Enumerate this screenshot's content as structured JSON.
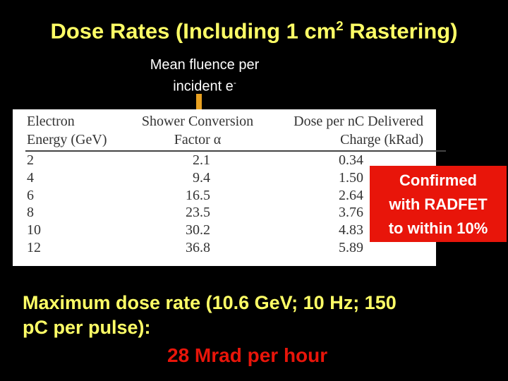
{
  "title": {
    "text": "Dose Rates (Including 1 cm",
    "sup": "2",
    "rest": " Rastering)"
  },
  "annotation": {
    "line1": "Mean fluence per",
    "line2": "incident e",
    "sup": "-"
  },
  "table": {
    "header": [
      [
        "Electron",
        "Energy (GeV)"
      ],
      [
        "Shower Conversion",
        "Factor α"
      ],
      [
        "Dose per nC Delivered",
        "Charge (kRad)"
      ]
    ],
    "rows": [
      [
        "2",
        "2.1",
        "0.34"
      ],
      [
        "4",
        "9.4",
        "1.50"
      ],
      [
        "6",
        "16.5",
        "2.64"
      ],
      [
        "8",
        "23.5",
        "3.76"
      ],
      [
        "10",
        "30.2",
        "4.83"
      ],
      [
        "12",
        "36.8",
        "5.89"
      ]
    ]
  },
  "callout": [
    "Confirmed",
    "with RADFET",
    "to within 10%"
  ],
  "footer": {
    "line1": "Maximum dose rate (10.6 GeV; 10 Hz; 150",
    "line2": "pC per pulse):",
    "highlight": "28 Mrad per hour"
  }
}
